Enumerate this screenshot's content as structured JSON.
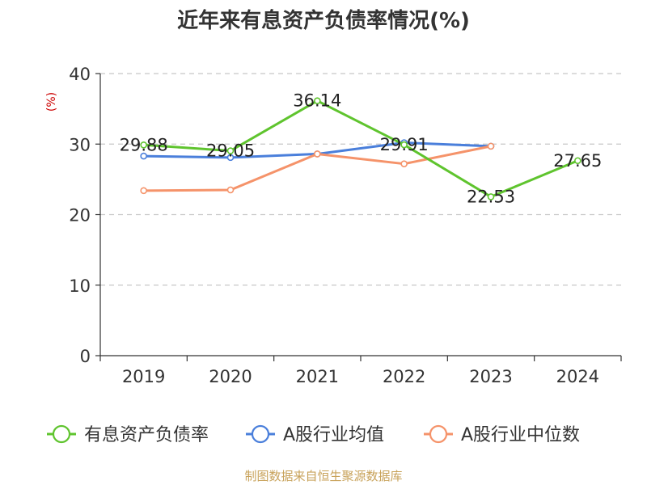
{
  "chart_data": {
    "type": "line",
    "title": "近年来有息资产负债率情况(%)",
    "ylabel": "(%)",
    "xlabel": "",
    "ylim": [
      0,
      40
    ],
    "yticks": [
      "0",
      "10",
      "20",
      "30",
      "40"
    ],
    "categories": [
      "2019",
      "2020",
      "2021",
      "2022",
      "2023",
      "2024"
    ],
    "grid": true,
    "legend_position": "bottom",
    "series": [
      {
        "name": "有息资产负债率",
        "color": "#5fc42e",
        "values": [
          29.88,
          29.05,
          36.14,
          29.91,
          22.53,
          27.65
        ],
        "labels": [
          "29.88",
          "29.05",
          "36.14",
          "29.91",
          "22.53",
          "27.65"
        ],
        "show_labels": true
      },
      {
        "name": "A股行业均值",
        "color": "#4a7fdb",
        "values": [
          28.3,
          28.1,
          28.6,
          30.2,
          29.7,
          null
        ],
        "show_labels": false
      },
      {
        "name": "A股行业中位数",
        "color": "#f5936a",
        "values": [
          23.4,
          23.5,
          28.6,
          27.2,
          29.7,
          null
        ],
        "show_labels": false
      }
    ],
    "source": "制图数据来自恒生聚源数据库",
    "source_color": "#c8a25a"
  }
}
